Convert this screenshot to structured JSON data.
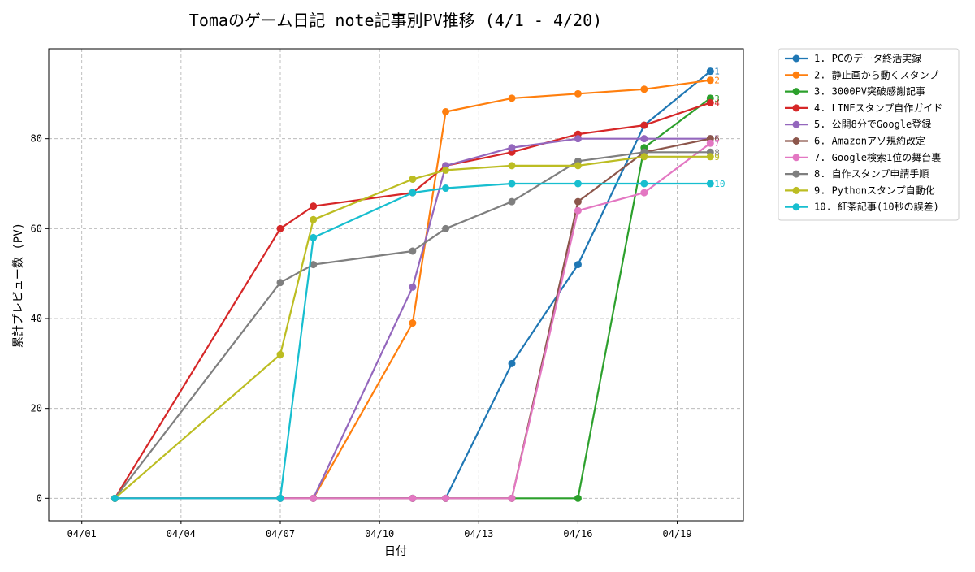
{
  "chart_data": {
    "type": "line",
    "title": "Tomaのゲーム日記 note記事別PV推移 (4/1 - 4/20)",
    "xlabel": "日付",
    "ylabel": "累計プレビュー数 (PV)",
    "x_axis": {
      "type": "date",
      "range": [
        "2025-03-31",
        "2025-04-21"
      ],
      "ticks": [
        "2025-04-01",
        "2025-04-04",
        "2025-04-07",
        "2025-04-10",
        "2025-04-13",
        "2025-04-16",
        "2025-04-19"
      ],
      "tick_labels": [
        "04/01",
        "04/04",
        "04/07",
        "04/10",
        "04/13",
        "04/16",
        "04/19"
      ]
    },
    "ylim": [
      -5,
      100
    ],
    "y_ticks": [
      0,
      20,
      40,
      60,
      80
    ],
    "grid": true,
    "legend_position": "outside-top-right",
    "x": [
      "2025-04-02",
      "2025-04-07",
      "2025-04-08",
      "2025-04-11",
      "2025-04-12",
      "2025-04-14",
      "2025-04-16",
      "2025-04-18",
      "2025-04-20"
    ],
    "series": [
      {
        "name": "1. PCのデータ終活実録",
        "end_label": "1",
        "color": "#1f77b4",
        "values": [
          0,
          0,
          0,
          0,
          0,
          30,
          52,
          83,
          95
        ]
      },
      {
        "name": "2. 静止画から動くスタンプ",
        "end_label": "2",
        "color": "#ff7f0e",
        "values": [
          0,
          0,
          0,
          39,
          86,
          89,
          90,
          91,
          93
        ]
      },
      {
        "name": "3. 3000PV突破感謝記事",
        "end_label": "3",
        "color": "#2ca02c",
        "values": [
          0,
          0,
          0,
          0,
          0,
          0,
          0,
          78,
          89
        ]
      },
      {
        "name": "4. LINEスタンプ自作ガイド",
        "end_label": "4",
        "color": "#d62728",
        "values": [
          0,
          60,
          65,
          68,
          74,
          77,
          81,
          83,
          88
        ]
      },
      {
        "name": "5. 公開8分でGoogle登録",
        "end_label": "5",
        "color": "#9467bd",
        "values": [
          0,
          0,
          0,
          47,
          74,
          78,
          80,
          80,
          80
        ]
      },
      {
        "name": "6. Amazonアソ規約改定",
        "end_label": "6",
        "color": "#8c564b",
        "values": [
          0,
          0,
          0,
          0,
          0,
          0,
          66,
          77,
          80
        ]
      },
      {
        "name": "7. Google検索1位の舞台裏",
        "end_label": "7",
        "color": "#e377c2",
        "values": [
          0,
          0,
          0,
          0,
          0,
          0,
          64,
          68,
          79
        ]
      },
      {
        "name": "8. 自作スタンプ申請手順",
        "end_label": "8",
        "color": "#7f7f7f",
        "values": [
          0,
          48,
          52,
          55,
          60,
          66,
          75,
          77,
          77
        ]
      },
      {
        "name": "9. Pythonスタンプ自動化",
        "end_label": "9",
        "color": "#bcbd22",
        "values": [
          0,
          32,
          62,
          71,
          73,
          74,
          74,
          76,
          76
        ]
      },
      {
        "name": "10. 紅茶記事(10秒の誤差)",
        "end_label": "10",
        "color": "#17becf",
        "values": [
          0,
          0,
          58,
          68,
          69,
          70,
          70,
          70,
          70
        ]
      }
    ]
  }
}
